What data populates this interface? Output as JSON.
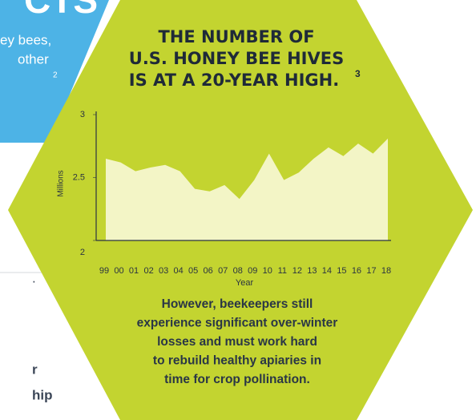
{
  "background": {
    "banner": [
      "CTS",
      "ey bees,",
      "other",
      "2"
    ],
    "fragments": [
      ".",
      "r",
      "hip"
    ]
  },
  "chart_data": {
    "type": "area",
    "title": [
      "THE NUMBER OF",
      "U.S. HONEY BEE HIVES",
      "IS AT A 20-YEAR HIGH."
    ],
    "title_note": "3",
    "y_label": "Millions",
    "x_label": "Year",
    "categories": [
      "99",
      "00",
      "01",
      "02",
      "03",
      "04",
      "05",
      "06",
      "07",
      "08",
      "09",
      "10",
      "11",
      "12",
      "13",
      "14",
      "15",
      "16",
      "17",
      "18"
    ],
    "values": [
      2.65,
      2.62,
      2.55,
      2.58,
      2.6,
      2.55,
      2.41,
      2.39,
      2.44,
      2.33,
      2.48,
      2.69,
      2.48,
      2.54,
      2.65,
      2.74,
      2.67,
      2.77,
      2.69,
      2.81
    ],
    "color": "#f3f5c6",
    "ylim": [
      2,
      3
    ],
    "yticks": [
      2,
      2.5,
      3
    ],
    "caption": [
      "However, beekeepers still",
      "experience significant over-winter",
      "losses and must work hard",
      "to rebuild healthy apiaries in",
      "time for crop pollination."
    ]
  }
}
